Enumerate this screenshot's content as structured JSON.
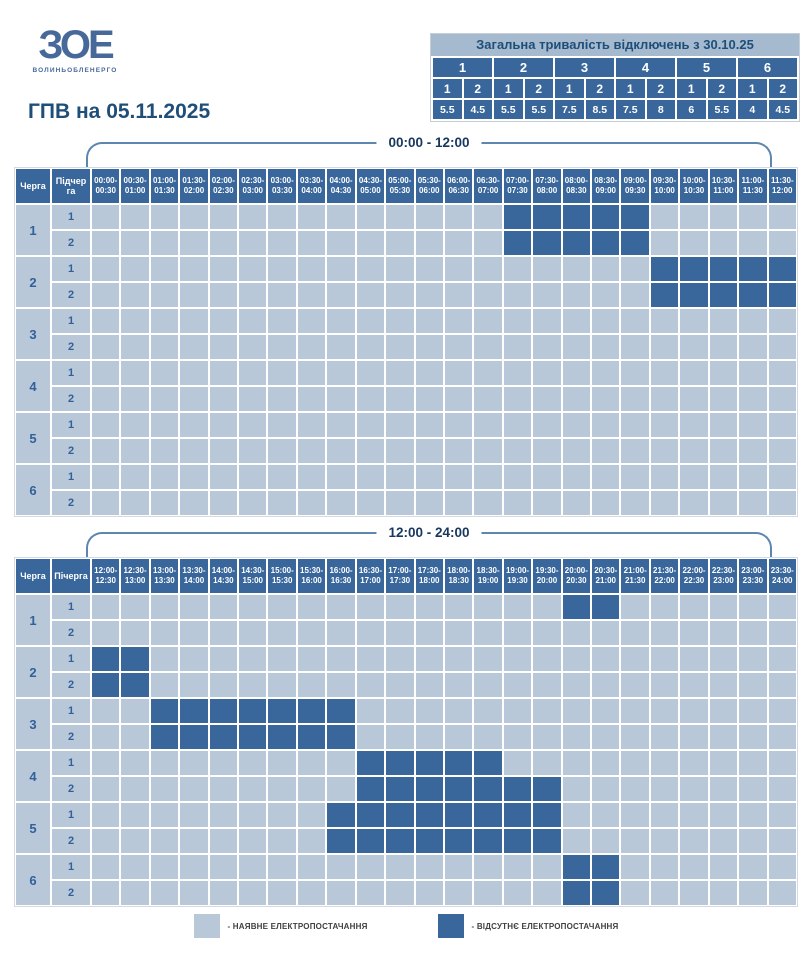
{
  "logo": {
    "text": "ЗОЕ",
    "subtext": "ВОЛИНЬОБЛЕНЕРГО"
  },
  "title": "ГПВ на 05.11.2025",
  "summary": {
    "title": "Загальна тривалість відключень з 30.10.25",
    "queues": [
      "1",
      "2",
      "3",
      "4",
      "5",
      "6"
    ],
    "subqueues": [
      "1",
      "2",
      "1",
      "2",
      "1",
      "2",
      "1",
      "2",
      "1",
      "2",
      "1",
      "2"
    ],
    "values": [
      "5.5",
      "4.5",
      "5.5",
      "5.5",
      "7.5",
      "8.5",
      "7.5",
      "8",
      "6",
      "5.5",
      "4",
      "4.5"
    ]
  },
  "colors": {
    "outage": "#39679b",
    "available": "#b9c8d8",
    "navy": "#1f4e79",
    "row_label": "#31619b",
    "summary_title_bg": "#a5bacf",
    "brace_line": "#5e87b0"
  },
  "tables": [
    {
      "range_label": "00:00 - 12:00",
      "col1_header": "Черга",
      "col2_header": "Підчерга",
      "slots": [
        "00:00-00:30",
        "00:30-01:00",
        "01:00-01:30",
        "01:30-02:00",
        "02:00-02:30",
        "02:30-03:00",
        "03:00-03:30",
        "03:30-04:00",
        "04:00-04:30",
        "04:30-05:00",
        "05:00-05:30",
        "05:30-06:00",
        "06:00-06:30",
        "06:30-07:00",
        "07:00-07:30",
        "07:30-08:00",
        "08:00-08:30",
        "08:30-09:00",
        "09:00-09:30",
        "09:30-10:00",
        "10:00-10:30",
        "10:30-11:00",
        "11:00-11:30",
        "11:30-12:00"
      ],
      "rows": [
        {
          "queue": "1",
          "sub": "1",
          "outages": [
            14,
            15,
            16,
            17,
            18
          ]
        },
        {
          "queue": "1",
          "sub": "2",
          "outages": [
            14,
            15,
            16,
            17,
            18
          ]
        },
        {
          "queue": "2",
          "sub": "1",
          "outages": [
            19,
            20,
            21,
            22,
            23
          ]
        },
        {
          "queue": "2",
          "sub": "2",
          "outages": [
            19,
            20,
            21,
            22,
            23
          ]
        },
        {
          "queue": "3",
          "sub": "1",
          "outages": []
        },
        {
          "queue": "3",
          "sub": "2",
          "outages": []
        },
        {
          "queue": "4",
          "sub": "1",
          "outages": []
        },
        {
          "queue": "4",
          "sub": "2",
          "outages": []
        },
        {
          "queue": "5",
          "sub": "1",
          "outages": []
        },
        {
          "queue": "5",
          "sub": "2",
          "outages": []
        },
        {
          "queue": "6",
          "sub": "1",
          "outages": []
        },
        {
          "queue": "6",
          "sub": "2",
          "outages": []
        }
      ]
    },
    {
      "range_label": "12:00 - 24:00",
      "col1_header": "Черга",
      "col2_header": "Пічерга",
      "slots": [
        "12:00-12:30",
        "12:30-13:00",
        "13:00-13:30",
        "13:30-14:00",
        "14:00-14:30",
        "14:30-15:00",
        "15:00-15:30",
        "15:30-16:00",
        "16:00-16:30",
        "16:30-17:00",
        "17:00-17:30",
        "17:30-18:00",
        "18:00-18:30",
        "18:30-19:00",
        "19:00-19:30",
        "19:30-20:00",
        "20:00-20:30",
        "20:30-21:00",
        "21:00-21:30",
        "21:30-22:00",
        "22:00-22:30",
        "22:30-23:00",
        "23:00-23:30",
        "23:30-24:00"
      ],
      "rows": [
        {
          "queue": "1",
          "sub": "1",
          "outages": [
            16,
            17
          ]
        },
        {
          "queue": "1",
          "sub": "2",
          "outages": []
        },
        {
          "queue": "2",
          "sub": "1",
          "outages": [
            0,
            1
          ]
        },
        {
          "queue": "2",
          "sub": "2",
          "outages": [
            0,
            1
          ]
        },
        {
          "queue": "3",
          "sub": "1",
          "outages": [
            2,
            3,
            4,
            5,
            6,
            7,
            8
          ]
        },
        {
          "queue": "3",
          "sub": "2",
          "outages": [
            2,
            3,
            4,
            5,
            6,
            7,
            8
          ]
        },
        {
          "queue": "4",
          "sub": "1",
          "outages": [
            9,
            10,
            11,
            12,
            13
          ]
        },
        {
          "queue": "4",
          "sub": "2",
          "outages": [
            9,
            10,
            11,
            12,
            13,
            14,
            15
          ]
        },
        {
          "queue": "5",
          "sub": "1",
          "outages": [
            8,
            9,
            10,
            11,
            12,
            13,
            14,
            15
          ]
        },
        {
          "queue": "5",
          "sub": "2",
          "outages": [
            8,
            9,
            10,
            11,
            12,
            13,
            14,
            15
          ]
        },
        {
          "queue": "6",
          "sub": "1",
          "outages": [
            16,
            17
          ]
        },
        {
          "queue": "6",
          "sub": "2",
          "outages": [
            16,
            17
          ]
        }
      ]
    }
  ],
  "legend": [
    {
      "label": "- НАЯВНЕ ЕЛЕКТРОПОСТАЧАННЯ",
      "type": "available"
    },
    {
      "label": "- ВІДСУТНЄ ЕЛЕКТРОПОСТАЧАННЯ",
      "type": "outage"
    }
  ],
  "chart_data": [
    {
      "type": "table",
      "title": "Загальна тривалість відключень з 30.10.25",
      "columns": [
        "1.1",
        "1.2",
        "2.1",
        "2.2",
        "3.1",
        "3.2",
        "4.1",
        "4.2",
        "5.1",
        "5.2",
        "6.1",
        "6.2"
      ],
      "values": [
        5.5,
        4.5,
        5.5,
        5.5,
        7.5,
        8.5,
        7.5,
        8,
        6,
        5.5,
        4,
        4.5
      ]
    },
    {
      "type": "heatmap",
      "title": "00:00 - 12:00",
      "x_range": [
        "00:00",
        "12:00"
      ],
      "slot_minutes": 30,
      "rows": [
        "1.1",
        "1.2",
        "2.1",
        "2.2",
        "3.1",
        "3.2",
        "4.1",
        "4.2",
        "5.1",
        "5.2",
        "6.1",
        "6.2"
      ],
      "outage_intervals": {
        "1.1": [
          "07:00-09:30"
        ],
        "1.2": [
          "07:00-09:30"
        ],
        "2.1": [
          "09:30-12:00"
        ],
        "2.2": [
          "09:30-12:00"
        ],
        "3.1": [],
        "3.2": [],
        "4.1": [],
        "4.2": [],
        "5.1": [],
        "5.2": [],
        "6.1": [],
        "6.2": []
      }
    },
    {
      "type": "heatmap",
      "title": "12:00 - 24:00",
      "x_range": [
        "12:00",
        "24:00"
      ],
      "slot_minutes": 30,
      "rows": [
        "1.1",
        "1.2",
        "2.1",
        "2.2",
        "3.1",
        "3.2",
        "4.1",
        "4.2",
        "5.1",
        "5.2",
        "6.1",
        "6.2"
      ],
      "outage_intervals": {
        "1.1": [
          "20:00-21:00"
        ],
        "1.2": [],
        "2.1": [
          "12:00-13:00"
        ],
        "2.2": [
          "12:00-13:00"
        ],
        "3.1": [
          "13:00-16:30"
        ],
        "3.2": [
          "13:00-16:30"
        ],
        "4.1": [
          "16:30-19:00"
        ],
        "4.2": [
          "16:30-20:00"
        ],
        "5.1": [
          "16:00-20:00"
        ],
        "5.2": [
          "16:00-20:00"
        ],
        "6.1": [
          "20:00-21:00"
        ],
        "6.2": [
          "20:00-21:00"
        ]
      }
    }
  ]
}
